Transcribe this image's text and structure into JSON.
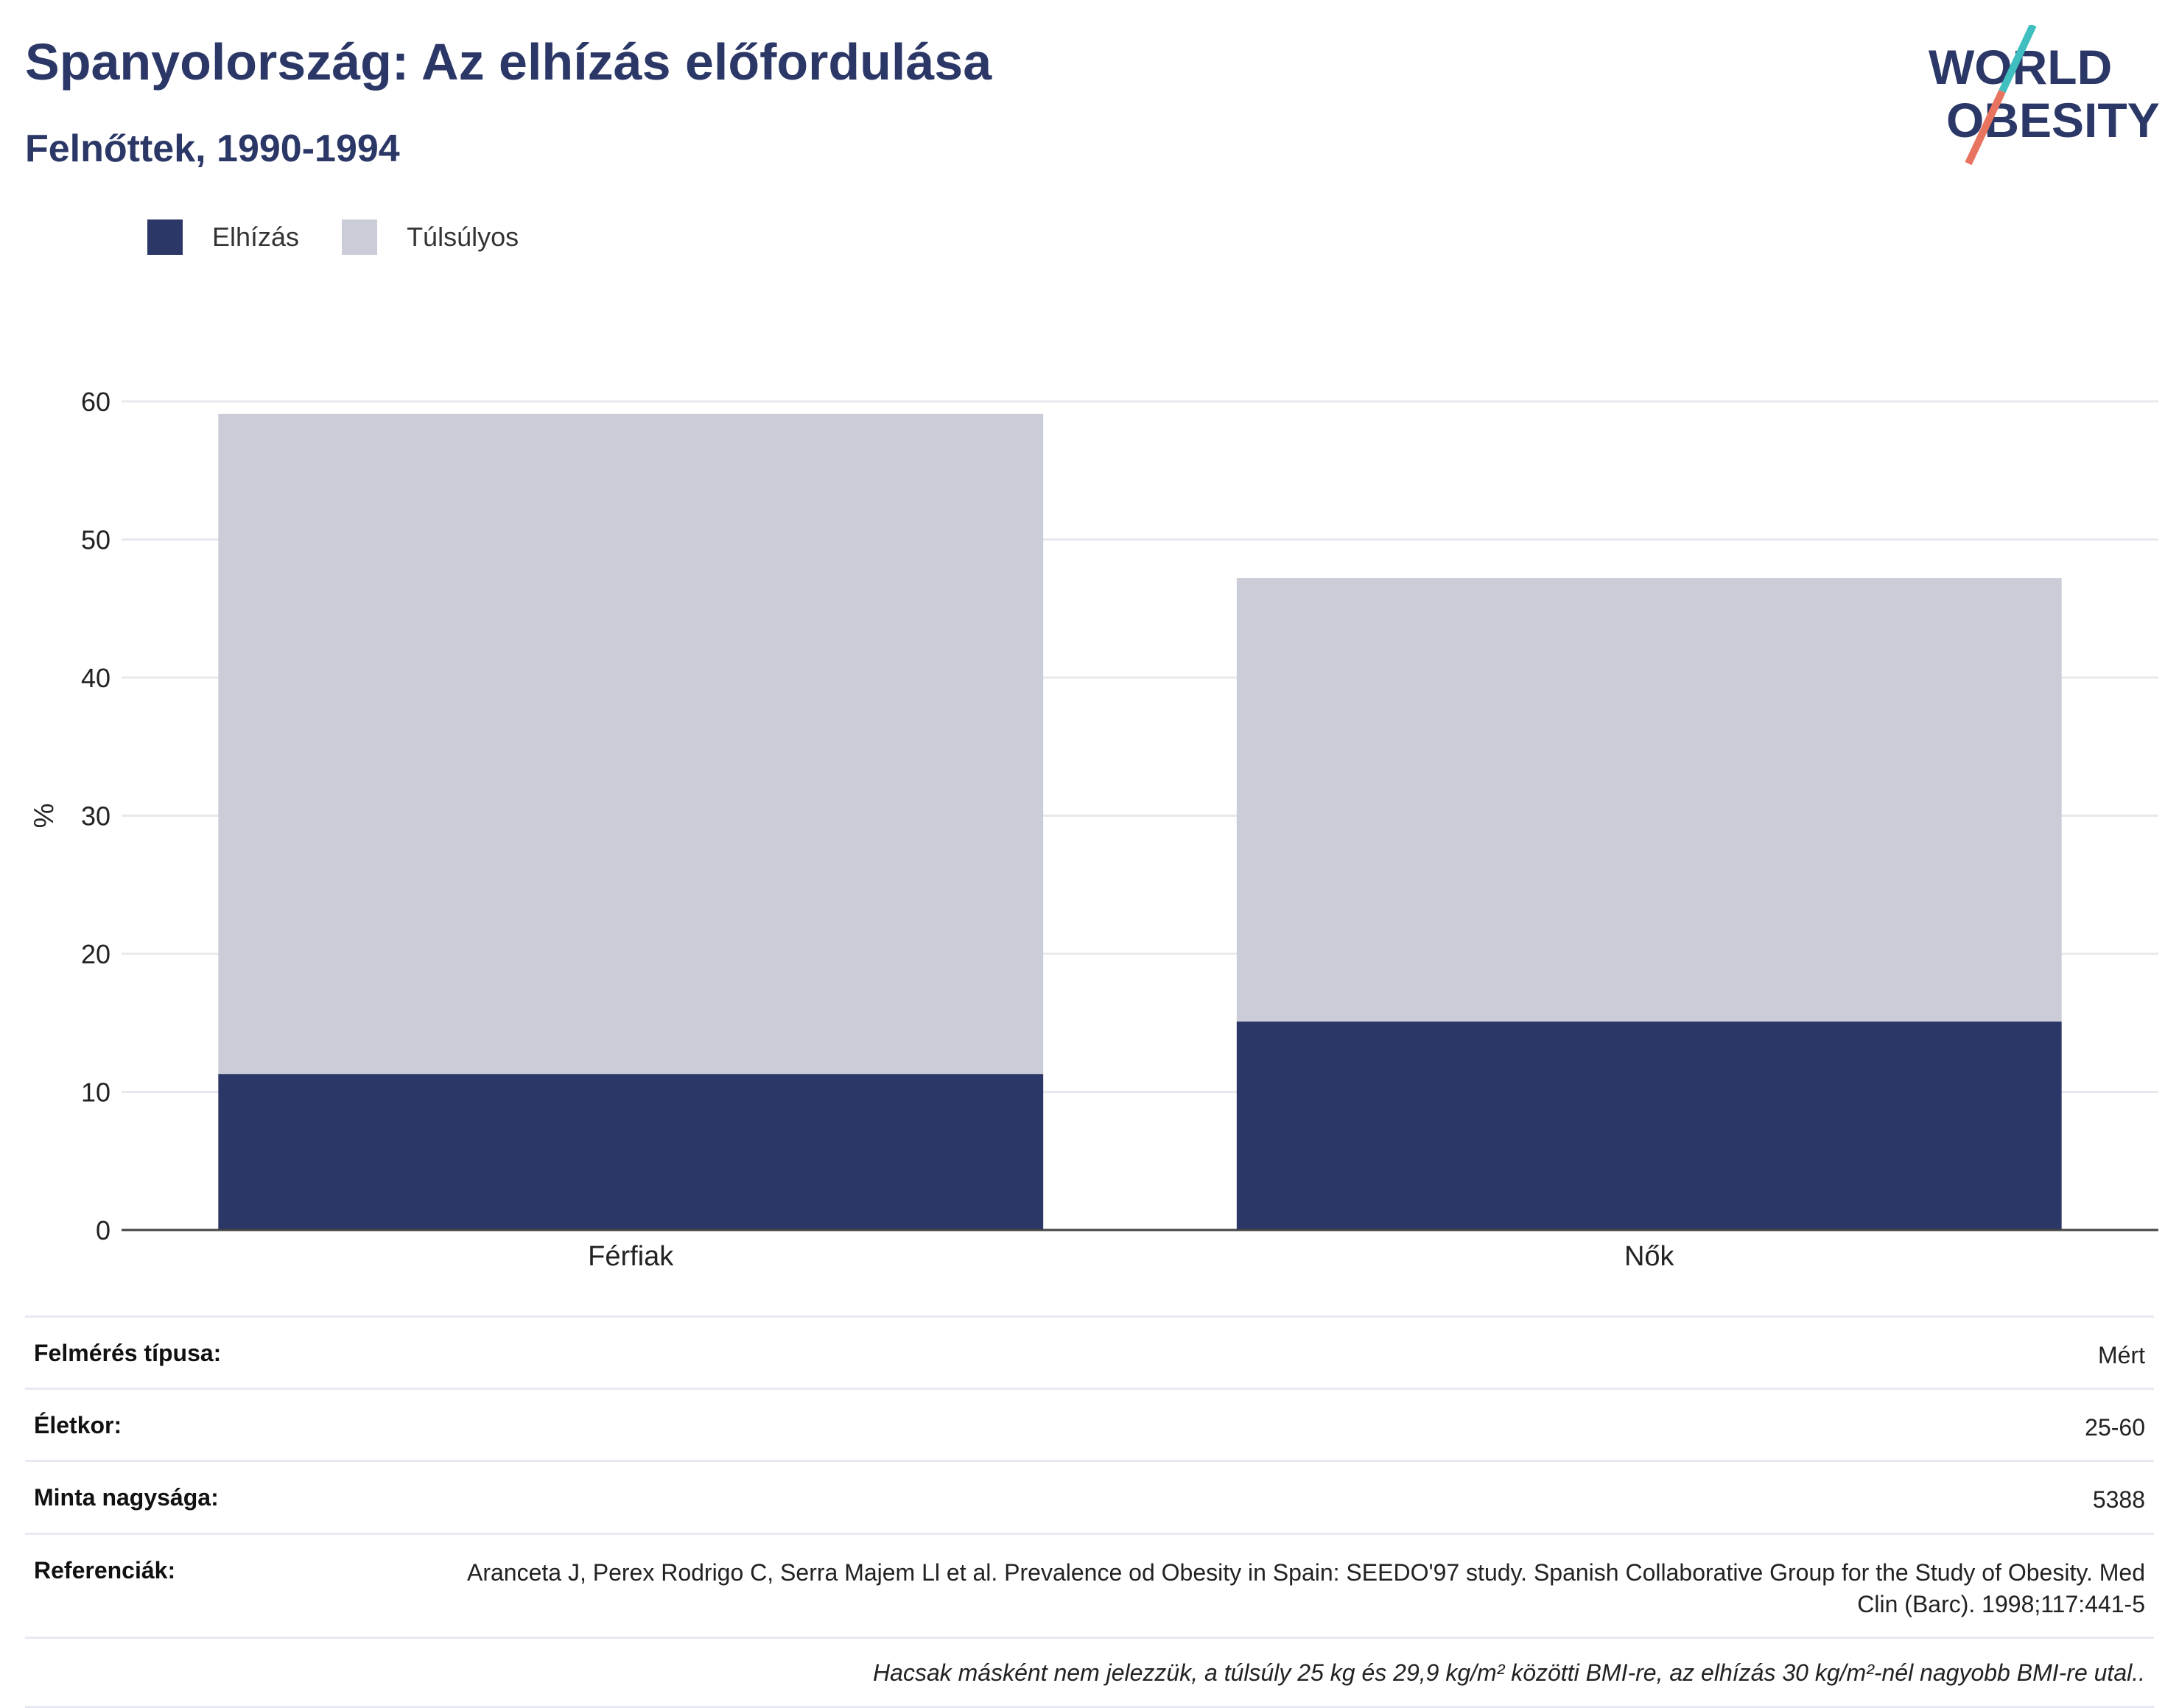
{
  "header": {
    "title": "Spanyolország: Az elhízás előfordulása",
    "subtitle": "Felnőttek, 1990-1994"
  },
  "logo": {
    "line1": "WORLD",
    "line2": "OBESITY"
  },
  "colors": {
    "obese": "#2b3766",
    "overweight": "#cacdd8",
    "title": "#2b3766",
    "accent_teal": "#3fbfbf",
    "accent_coral": "#e8735f"
  },
  "chart_data": {
    "type": "bar",
    "stacked": true,
    "categories": [
      "Férfiak",
      "Nők"
    ],
    "series": [
      {
        "name": "Elhízás",
        "values": [
          11.3,
          15.1
        ]
      },
      {
        "name": "Túlsúlyos",
        "values": [
          47.8,
          32.1
        ]
      }
    ],
    "ylabel": "%",
    "ylim": [
      0,
      60
    ],
    "yticks": [
      0,
      10,
      20,
      30,
      40,
      50,
      60
    ],
    "grid": true,
    "legend_position": "top-left"
  },
  "info": {
    "rows": [
      {
        "label": "Felmérés típusa:",
        "value": "Mért"
      },
      {
        "label": "Életkor:",
        "value": "25-60"
      },
      {
        "label": "Minta nagysága:",
        "value": "5388"
      },
      {
        "label": "Referenciák:",
        "value": "Aranceta J, Perex Rodrigo C, Serra Majem Ll et al. Prevalence od Obesity in Spain: SEEDO'97 study. Spanish Collaborative Group for the Study of Obesity. Med Clin (Barc). 1998;117:441-5"
      }
    ],
    "note": "Hacsak másként nem jelezzük, a túlsúly 25 kg és 29,9 kg/m² közötti BMI-re, az elhízás 30 kg/m²-nél nagyobb BMI-re utal.."
  }
}
